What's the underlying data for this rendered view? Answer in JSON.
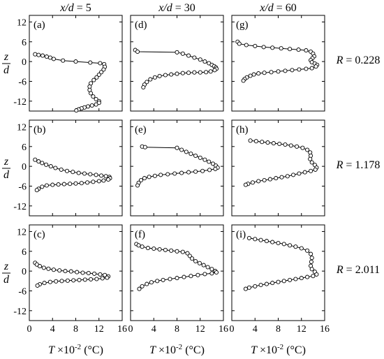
{
  "figure": {
    "column_headers": [
      {
        "var": "x/d",
        "eq": " = 5"
      },
      {
        "var": "x/d",
        "eq": " = 30"
      },
      {
        "var": "x/d",
        "eq": " = 60"
      }
    ],
    "row_labels": [
      "R = 0.228",
      "R = 1.178",
      "R = 2.011"
    ],
    "y_axis_label": {
      "numerator": "z",
      "denominator": "d"
    },
    "x_axis_label": {
      "var": "T",
      "mid": " ×10",
      "exp": "-2",
      "unit": " (°C)"
    }
  },
  "chart_data": [
    {
      "panel": "(a)",
      "type": "line",
      "xlim": [
        0,
        16
      ],
      "ylim": [
        -15,
        14
      ],
      "xticks": [
        "0",
        "4",
        "8",
        "12",
        "16"
      ],
      "yticks": [
        "12",
        "6",
        "0",
        "-6",
        "-12"
      ],
      "x": [
        1.0,
        1.6,
        2.3,
        3.0,
        3.6,
        4.2,
        5.8,
        8.0,
        10.5,
        12.2,
        12.9,
        13.0,
        12.8,
        12.4,
        12.0,
        11.6,
        11.1,
        10.6,
        10.4,
        10.4,
        10.6,
        11.0,
        11.5,
        12.0,
        12.0,
        11.5,
        10.8,
        10.1,
        9.5,
        9.0,
        8.5,
        8.1
      ],
      "y": [
        2.2,
        2.0,
        1.8,
        1.5,
        1.2,
        0.8,
        0.3,
        0.0,
        -0.3,
        -0.5,
        -0.8,
        -1.6,
        -2.4,
        -3.2,
        -4.0,
        -4.8,
        -5.6,
        -6.6,
        -7.6,
        -8.6,
        -9.6,
        -10.6,
        -11.4,
        -12.0,
        -12.5,
        -13.0,
        -13.3,
        -13.6,
        -13.9,
        -14.2,
        -14.5,
        -14.8
      ]
    },
    {
      "panel": "(b)",
      "type": "line",
      "xlim": [
        0,
        16
      ],
      "ylim": [
        -15,
        14
      ],
      "xticks": [
        "0",
        "4",
        "8",
        "12",
        "16"
      ],
      "yticks": [
        "12",
        "6",
        "0",
        "-6",
        "-12"
      ],
      "x": [
        1.0,
        1.6,
        2.2,
        2.9,
        3.7,
        4.5,
        5.5,
        6.5,
        7.5,
        8.5,
        9.5,
        10.5,
        11.5,
        12.4,
        13.2,
        13.8,
        13.9,
        13.6,
        12.8,
        12.0,
        11.0,
        10.0,
        9.0,
        8.0,
        7.0,
        6.0,
        5.0,
        4.0,
        3.0,
        2.2,
        1.6,
        1.3
      ],
      "y": [
        2.0,
        1.5,
        1.0,
        0.5,
        0.0,
        -0.5,
        -1.0,
        -1.4,
        -1.7,
        -2.0,
        -2.2,
        -2.4,
        -2.6,
        -2.8,
        -3.0,
        -3.2,
        -3.6,
        -4.0,
        -4.3,
        -4.5,
        -4.7,
        -4.9,
        -5.1,
        -5.2,
        -5.3,
        -5.4,
        -5.5,
        -5.6,
        -5.8,
        -6.2,
        -6.8,
        -7.2
      ]
    },
    {
      "panel": "(c)",
      "type": "line",
      "xlim": [
        0,
        16
      ],
      "ylim": [
        -15,
        14
      ],
      "xticks": [
        "0",
        "4",
        "8",
        "12",
        "16"
      ],
      "yticks": [
        "12",
        "6",
        "0",
        "-6",
        "-12"
      ],
      "x": [
        1.0,
        1.3,
        1.8,
        2.5,
        3.3,
        4.2,
        5.2,
        6.2,
        7.2,
        8.2,
        9.2,
        10.2,
        11.2,
        12.2,
        13.0,
        13.6,
        13.4,
        12.6,
        11.6,
        10.6,
        9.6,
        8.6,
        7.6,
        6.6,
        5.6,
        4.6,
        3.6,
        2.6,
        1.8,
        1.4
      ],
      "y": [
        2.5,
        2.0,
        1.5,
        1.0,
        0.7,
        0.4,
        0.2,
        0.0,
        -0.1,
        -0.3,
        -0.5,
        -0.6,
        -0.8,
        -1.0,
        -1.2,
        -1.6,
        -2.0,
        -2.2,
        -2.4,
        -2.5,
        -2.6,
        -2.7,
        -2.8,
        -2.9,
        -3.0,
        -3.1,
        -3.3,
        -3.6,
        -4.0,
        -4.4
      ]
    },
    {
      "panel": "(d)",
      "type": "line",
      "xlim": [
        0,
        16
      ],
      "ylim": [
        -15,
        14
      ],
      "xticks": [
        "0",
        "4",
        "8",
        "12",
        "16"
      ],
      "yticks": [
        "12",
        "6",
        "0",
        "-6",
        "-12"
      ],
      "x": [
        0.8,
        1.2,
        8.0,
        9.0,
        10.0,
        11.0,
        12.0,
        12.8,
        13.5,
        14.0,
        14.4,
        14.7,
        14.8,
        14.5,
        13.8,
        13.0,
        12.0,
        11.0,
        10.0,
        9.0,
        8.0,
        7.0,
        6.0,
        5.0,
        4.2,
        3.4,
        2.8,
        2.4,
        2.2
      ],
      "y": [
        3.5,
        3.0,
        2.8,
        2.4,
        1.8,
        1.2,
        0.6,
        0.0,
        -0.5,
        -1.0,
        -1.4,
        -1.8,
        -2.2,
        -2.6,
        -3.0,
        -3.2,
        -3.3,
        -3.3,
        -3.4,
        -3.5,
        -3.7,
        -3.9,
        -4.1,
        -4.4,
        -4.8,
        -5.4,
        -6.2,
        -7.0,
        -7.8
      ]
    },
    {
      "panel": "(e)",
      "type": "line",
      "xlim": [
        0,
        16
      ],
      "ylim": [
        -15,
        14
      ],
      "xticks": [
        "0",
        "4",
        "8",
        "12",
        "16"
      ],
      "yticks": [
        "12",
        "6",
        "0",
        "-6",
        "-12"
      ],
      "x": [
        2.0,
        2.5,
        8.0,
        8.8,
        9.6,
        10.4,
        11.2,
        12.0,
        12.8,
        13.5,
        14.2,
        14.7,
        15.0,
        14.6,
        13.6,
        12.4,
        11.2,
        10.0,
        8.8,
        7.6,
        6.4,
        5.2,
        4.2,
        3.2,
        2.4,
        1.8,
        1.4,
        1.2
      ],
      "y": [
        6.0,
        5.8,
        5.6,
        5.0,
        4.4,
        3.8,
        3.2,
        2.6,
        2.0,
        1.4,
        0.8,
        0.2,
        -0.4,
        -0.8,
        -1.1,
        -1.4,
        -1.6,
        -1.8,
        -2.0,
        -2.2,
        -2.4,
        -2.6,
        -2.9,
        -3.2,
        -3.6,
        -4.2,
        -5.0,
        -5.8
      ]
    },
    {
      "panel": "(f)",
      "type": "line",
      "xlim": [
        0,
        16
      ],
      "ylim": [
        -15,
        14
      ],
      "xticks": [
        "0",
        "4",
        "8",
        "12",
        "16"
      ],
      "yticks": [
        "12",
        "6",
        "0",
        "-6",
        "-12"
      ],
      "x": [
        1.0,
        1.4,
        2.0,
        3.0,
        4.0,
        5.0,
        6.0,
        7.0,
        8.0,
        9.0,
        9.8,
        10.2,
        10.6,
        11.2,
        11.9,
        12.6,
        13.3,
        14.0,
        14.6,
        14.8,
        14.0,
        12.8,
        11.6,
        10.4,
        9.2,
        8.0,
        6.8,
        5.6,
        4.6,
        3.6,
        2.8,
        2.0,
        1.5
      ],
      "y": [
        8.2,
        7.8,
        7.4,
        7.0,
        6.8,
        6.6,
        6.4,
        6.2,
        6.0,
        5.8,
        5.4,
        4.6,
        3.8,
        3.0,
        2.4,
        1.8,
        1.2,
        0.6,
        0.0,
        -0.4,
        -0.7,
        -0.9,
        -1.2,
        -1.5,
        -1.8,
        -2.1,
        -2.4,
        -2.7,
        -3.0,
        -3.4,
        -3.9,
        -4.6,
        -5.4
      ]
    },
    {
      "panel": "(g)",
      "type": "line",
      "xlim": [
        0,
        16
      ],
      "ylim": [
        -15,
        14
      ],
      "xticks": [
        "0",
        "4",
        "8",
        "12",
        "16"
      ],
      "yticks": [
        "12",
        "6",
        "0",
        "-6",
        "-12"
      ],
      "x": [
        1.0,
        1.3,
        2.5,
        4.0,
        5.5,
        7.0,
        8.5,
        10.0,
        11.5,
        12.8,
        13.6,
        14.0,
        14.2,
        13.9,
        13.6,
        13.8,
        14.3,
        14.7,
        14.5,
        13.8,
        12.8,
        11.6,
        10.4,
        9.2,
        8.0,
        6.8,
        5.6,
        4.6,
        3.8,
        3.2,
        2.6,
        2.2,
        2.0
      ],
      "y": [
        6.0,
        5.4,
        5.0,
        4.7,
        4.4,
        4.2,
        4.0,
        3.8,
        3.6,
        3.4,
        3.0,
        2.4,
        1.6,
        1.0,
        0.4,
        -0.2,
        -0.6,
        -1.0,
        -1.5,
        -2.0,
        -2.2,
        -2.4,
        -2.6,
        -2.8,
        -3.0,
        -3.2,
        -3.4,
        -3.6,
        -3.9,
        -4.3,
        -4.8,
        -5.3,
        -5.8
      ]
    },
    {
      "panel": "(h)",
      "type": "line",
      "xlim": [
        0,
        16
      ],
      "ylim": [
        -15,
        14
      ],
      "xticks": [
        "0",
        "4",
        "8",
        "12",
        "16"
      ],
      "yticks": [
        "12",
        "6",
        "0",
        "-6",
        "-12"
      ],
      "x": [
        3.2,
        4.2,
        5.2,
        6.2,
        7.2,
        8.2,
        9.2,
        10.2,
        11.2,
        12.2,
        13.0,
        13.5,
        13.6,
        13.5,
        13.8,
        14.3,
        14.6,
        14.4,
        13.6,
        12.6,
        11.6,
        10.6,
        9.6,
        8.6,
        7.6,
        6.6,
        5.6,
        4.6,
        3.6,
        2.8,
        2.4
      ],
      "y": [
        7.8,
        7.6,
        7.4,
        7.2,
        7.0,
        6.8,
        6.6,
        6.3,
        6.0,
        5.6,
        5.0,
        4.2,
        3.2,
        2.2,
        1.2,
        0.4,
        -0.4,
        -1.0,
        -1.4,
        -1.8,
        -2.2,
        -2.6,
        -3.0,
        -3.3,
        -3.6,
        -3.9,
        -4.2,
        -4.5,
        -4.9,
        -5.3,
        -5.6
      ]
    },
    {
      "panel": "(i)",
      "type": "line",
      "xlim": [
        0,
        16
      ],
      "ylim": [
        -15,
        14
      ],
      "xticks": [
        "0",
        "4",
        "8",
        "12",
        "16"
      ],
      "yticks": [
        "12",
        "6",
        "0",
        "-6",
        "-12"
      ],
      "x": [
        3.0,
        4.0,
        5.0,
        6.0,
        7.0,
        8.0,
        9.0,
        10.0,
        11.0,
        12.0,
        13.0,
        13.6,
        13.8,
        13.7,
        13.6,
        13.8,
        14.3,
        14.6,
        14.0,
        13.0,
        12.0,
        11.0,
        10.0,
        9.0,
        8.0,
        7.0,
        6.0,
        5.0,
        4.0,
        3.0,
        2.4
      ],
      "y": [
        10.0,
        9.7,
        9.4,
        9.1,
        8.8,
        8.5,
        8.2,
        7.8,
        7.4,
        6.9,
        6.2,
        5.2,
        4.0,
        2.8,
        1.6,
        0.6,
        -0.2,
        -1.0,
        -1.5,
        -1.8,
        -2.1,
        -2.4,
        -2.7,
        -3.0,
        -3.3,
        -3.6,
        -3.9,
        -4.2,
        -4.6,
        -5.0,
        -5.4
      ]
    }
  ]
}
